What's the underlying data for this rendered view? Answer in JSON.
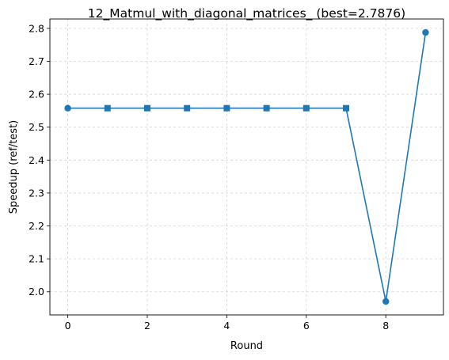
{
  "chart_data": {
    "type": "line",
    "title": "12_Matmul_with_diagonal_matrices_ (best=2.7876)",
    "xlabel": "Round",
    "ylabel": "Speedup (ref/test)",
    "x": [
      0,
      1,
      2,
      3,
      4,
      5,
      6,
      7,
      8,
      9
    ],
    "series": [
      {
        "values": [
          2.5576,
          2.5576,
          2.5576,
          2.5576,
          2.5576,
          2.5576,
          2.5576,
          2.5576,
          1.9706,
          2.7876
        ],
        "markers": [
          "circle",
          "square",
          "square",
          "square",
          "square",
          "square",
          "square",
          "square",
          "circle",
          "circle"
        ],
        "color": "#1f77b4"
      }
    ],
    "xlim": [
      -0.45,
      9.45
    ],
    "ylim": [
      1.9297,
      2.8285
    ],
    "xticks": [
      0,
      2,
      4,
      6,
      8
    ],
    "yticks": [
      2.0,
      2.1,
      2.2,
      2.3,
      2.4,
      2.5,
      2.6,
      2.7,
      2.8
    ],
    "ytick_labels": [
      "2.0",
      "2.1",
      "2.2",
      "2.3",
      "2.4",
      "2.5",
      "2.6",
      "2.7",
      "2.8"
    ],
    "grid": true,
    "grid_style": "dashed"
  }
}
